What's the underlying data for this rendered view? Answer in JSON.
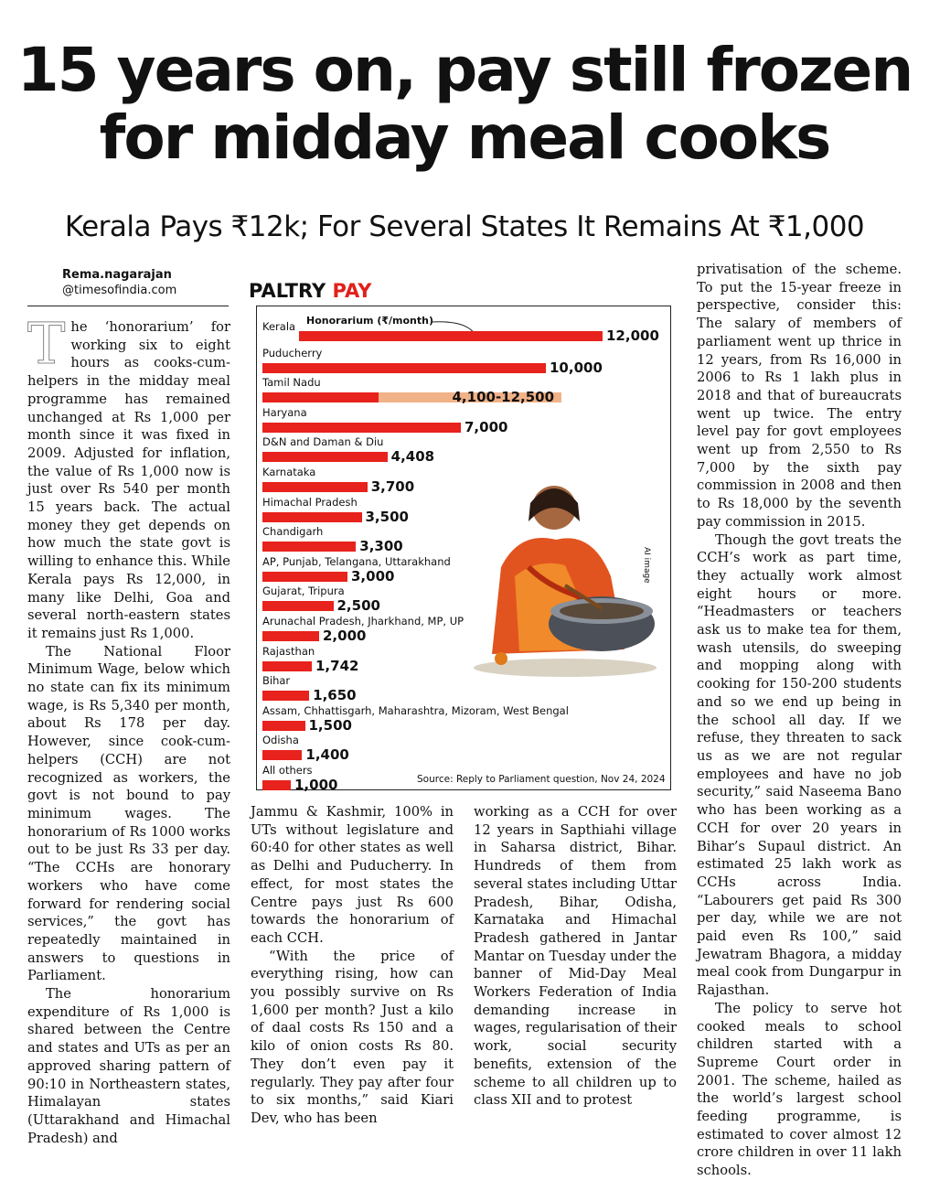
{
  "headline": [
    "15 years on, pay still frozen",
    "for midday meal cooks"
  ],
  "subhead": "Kerala Pays ₹12k; For Several States It Remains At ₹1,000",
  "byline": {
    "name": "Rema.nagarajan",
    "handle": "@timesofindia.com"
  },
  "col1": [
    "The ‘honorarium’ for working six to eight hours as cooks-cum-helpers in the midday meal programme has remained unchanged at Rs 1,000 per month since it was fixed in 2009. Adjusted for inflation, the value of Rs 1,000 now is just over Rs 540 per month 15 years back. The actual money they get depends on how much the state govt is willing to enhance this. While Kerala pays Rs 12,000, in many like Delhi, Goa and several north-eastern states it remains just Rs 1,000.",
    "The National Floor Minimum Wage, below which no state can fix its minimum wage, is Rs 5,340 per month, about Rs 178 per day. However, since cook-cum-helpers (CCH) are not recognized as workers, the govt is not bound to pay minimum wages. The honorarium of Rs 1000 works out to be just Rs 33 per day. “The CCHs are honorary workers who have come forward for rendering social services,” the govt has repeatedly maintained in answers to questions in Parliament.",
    "The honorarium expenditure of Rs 1,000 is shared between the Centre and states and UTs as per an approved sharing pattern of 90:10 in Northeastern states, Himalayan states (Uttarakhand and Himachal Pradesh) and"
  ],
  "col2": [
    "Jammu & Kashmir, 100% in UTs without legislature and 60:40 for other states as well as Delhi and Puducherry. In effect, for most states the Centre pays just Rs 600 towards the honorarium of each CCH.",
    "“With the price of everything rising, how can you possibly survive on Rs 1,600 per month? Just a kilo of daal costs Rs 150 and a kilo of onion costs Rs 80. They don’t even pay it regularly. They pay after four to six months,” said Kiari Dev, who has been"
  ],
  "col3": [
    "working as a CCH for over 12 years in Sapthiahi village in Saharsa district, Bihar. Hundreds of them from several states including Uttar Pradesh, Bihar, Odisha, Karnataka and Himachal Pradesh gathered in Jantar Mantar on Tuesday under the banner of Mid-Day Meal Workers Federation of India demanding increase in wages, regularisation of their work, social security benefits, extension of the scheme to all children up to class XII and to protest"
  ],
  "col4": [
    "privatisation of the scheme. To put the 15-year freeze in perspective, consider this: The salary of members of parliament went up thrice in 12 years, from Rs 16,000 in 2006 to Rs 1 lakh plus in 2018 and that of bureaucrats went up twice. The entry level pay for govt employees went up from 2,550 to Rs 7,000 by the sixth pay commission in 2008 and then to Rs 18,000 by the seventh pay commission in 2015.",
    "Though the govt treats the CCH’s work as part time, they actually work almost eight hours or more. “Headmasters or teachers ask us to make tea for them, wash utensils, do sweeping and mopping along with cooking for 150-200 students and so we end up being in the school all day. If we refuse, they threaten to sack us as we are not regular employees and have no job security,” said Naseema Bano who has been working as a CCH for over 20 years in Bihar’s Supaul district. An estimated 25 lakh work as CCHs across India. “Labourers get paid Rs 300 per day, while we are not paid even Rs 100,” said Jewatram Bhagora, a midday meal cook from Dungarpur in Rajasthan.",
    "The policy to serve hot cooked meals to school children started with a Supreme Court order in 2001. The scheme, hailed as the world’s largest school feeding programme, is estimated to cover almost 12 crore children in over 11 lakh schools."
  ],
  "chart_data": {
    "type": "bar",
    "title_part1": "PALTRY ",
    "title_part2": "PAY",
    "series_label": "Honorarium (₹/month)",
    "categories": [
      "Kerala",
      "Puducherry",
      "Tamil Nadu",
      "Haryana",
      "D&N and Daman & Diu",
      "Karnataka",
      "Himachal Pradesh",
      "Chandigarh",
      "AP, Punjab, Telangana, Uttarakhand",
      "Gujarat, Tripura",
      "Arunachal Pradesh, Jharkhand, MP, UP",
      "Rajasthan",
      "Bihar",
      "Assam, Chhattisgarh, Maharashtra, Mizoram, West Bengal",
      "Odisha",
      "All others"
    ],
    "values": [
      12000,
      10000,
      4100,
      7000,
      4408,
      3700,
      3500,
      3300,
      3000,
      2500,
      2000,
      1742,
      1650,
      1500,
      1400,
      1000
    ],
    "range_max": [
      null,
      null,
      12500,
      null,
      null,
      null,
      null,
      null,
      null,
      null,
      null,
      null,
      null,
      null,
      null,
      null
    ],
    "labels": [
      "12,000",
      "10,000",
      "4,100-12,500",
      "7,000",
      "4,408",
      "3,700",
      "3,500",
      "3,300",
      "3,000",
      "2,500",
      "2,000",
      "1,742",
      "1,650",
      "1,500",
      "1,400",
      "1,000"
    ],
    "source": "Source: Reply to Parliament question, Nov 24, 2024",
    "image_note": "AI image",
    "colors": {
      "bar": "#e8221c",
      "range": "#f2b287",
      "accent": "#e0201b"
    }
  }
}
